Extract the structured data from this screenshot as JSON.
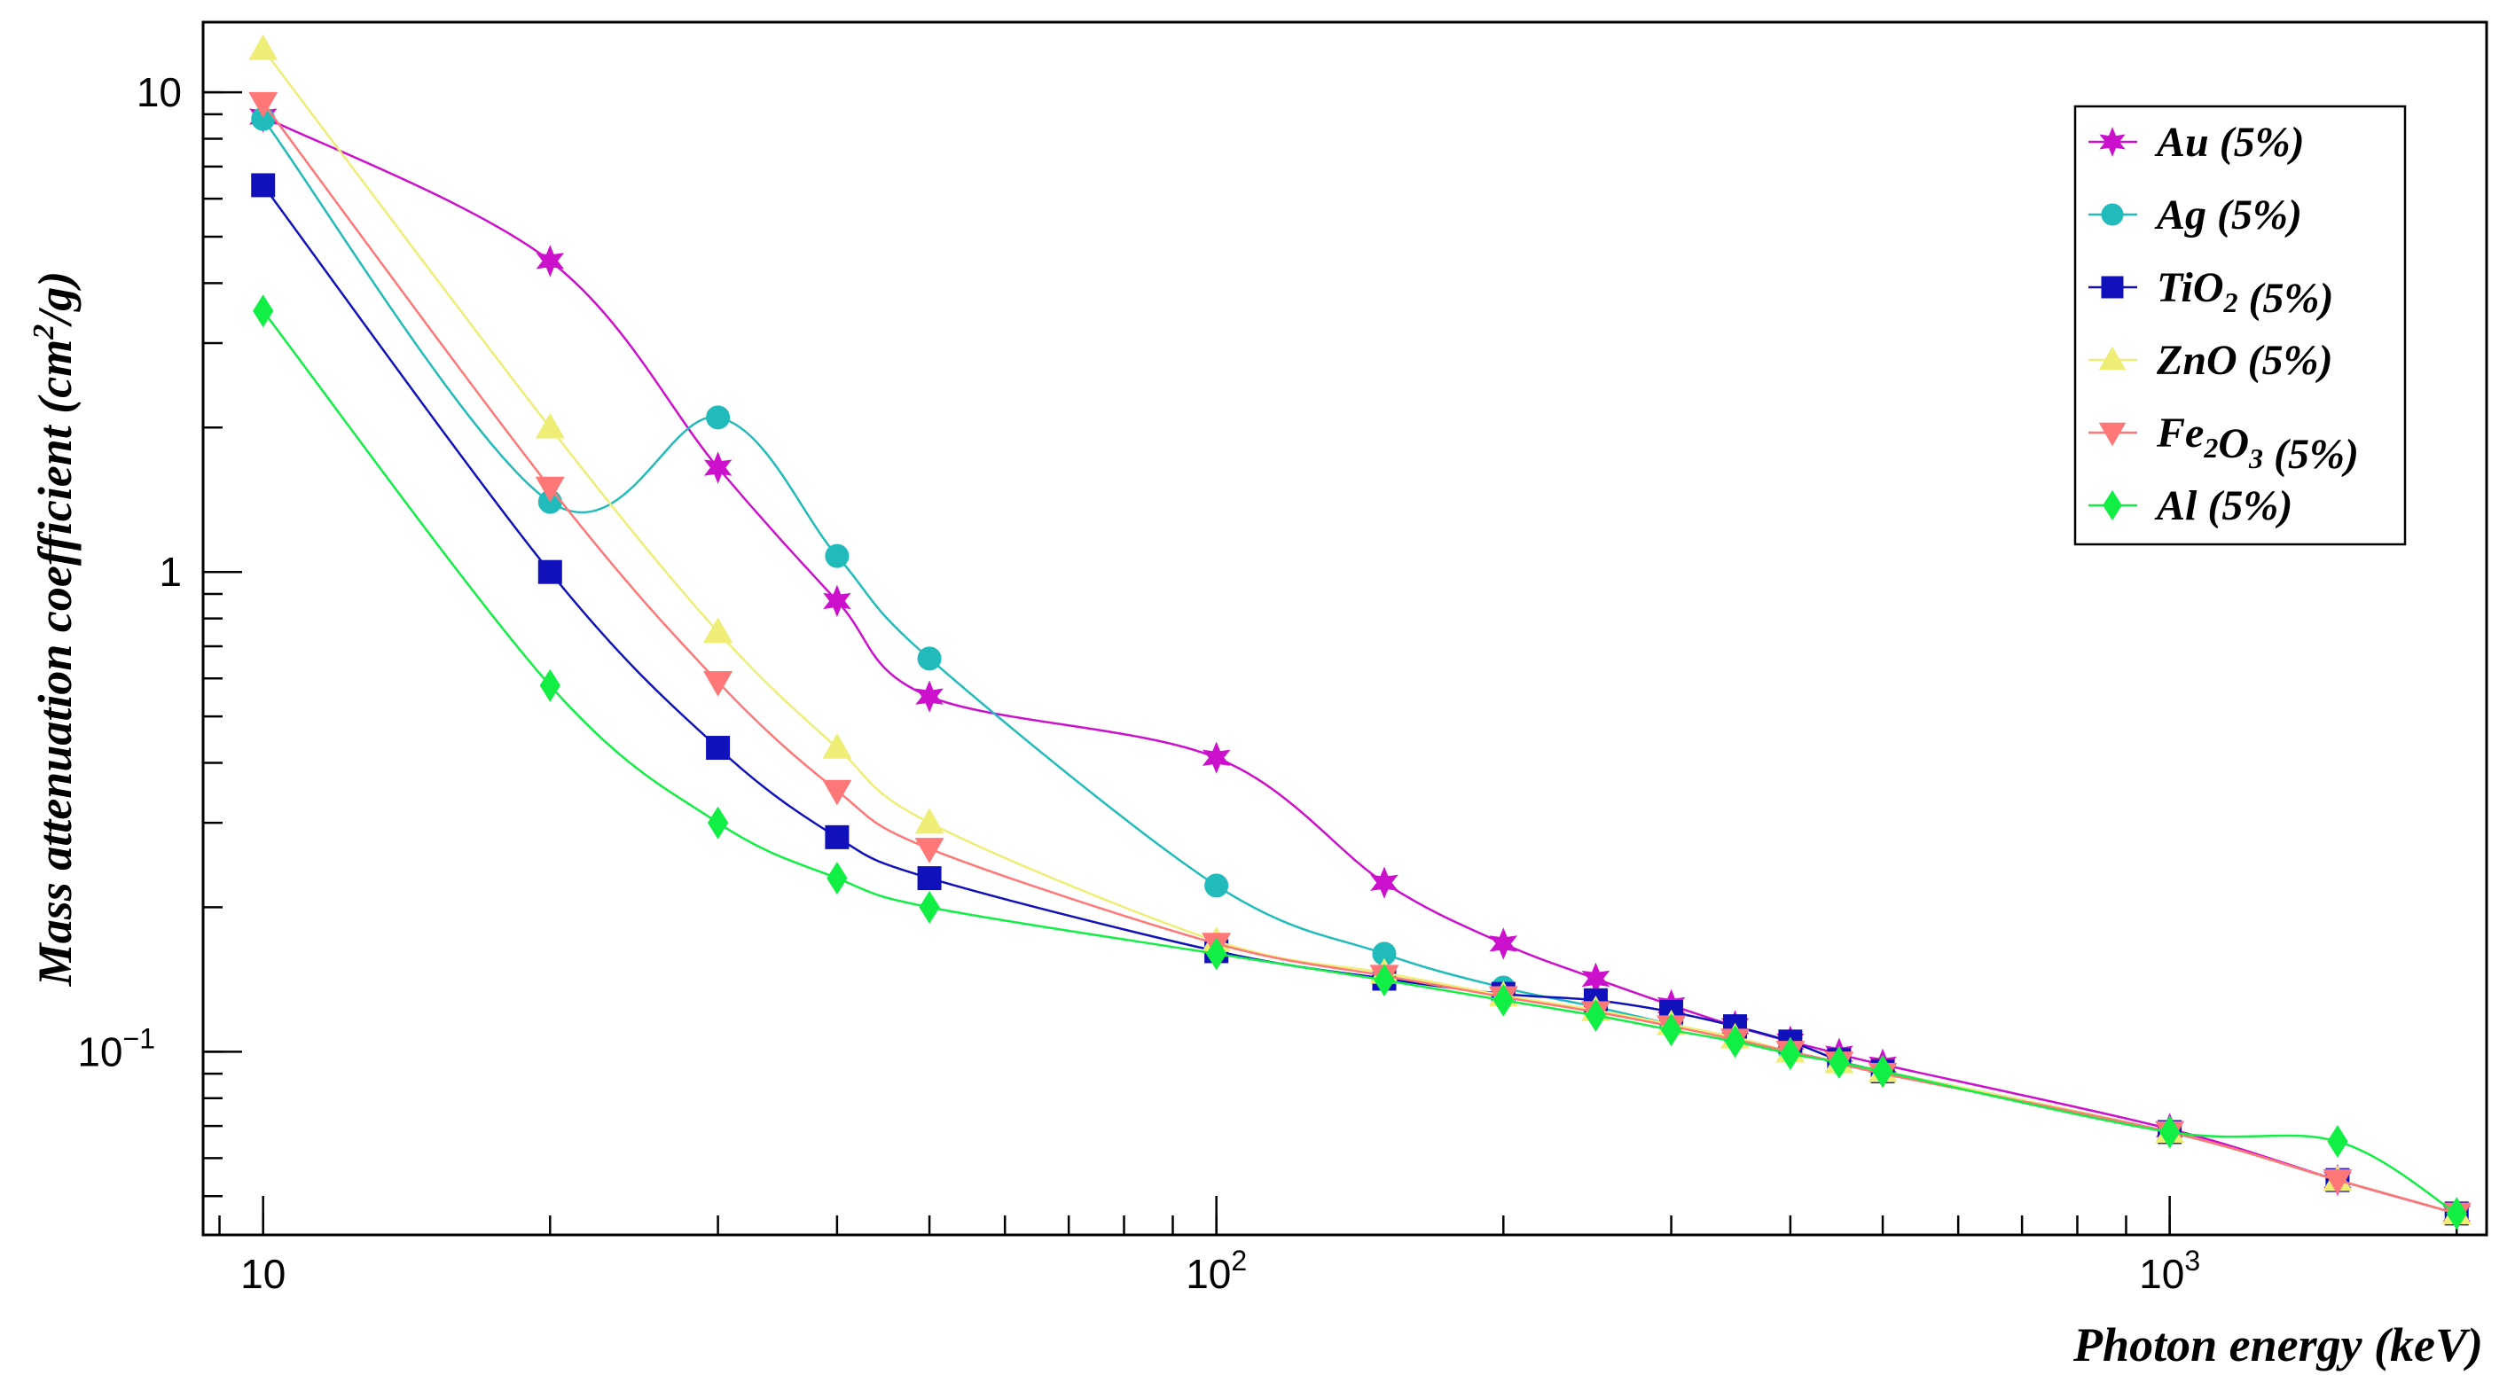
{
  "chart_data": {
    "type": "line",
    "title": "",
    "xlabel": "Photon energy (keV)",
    "ylabel_parts": {
      "main": "Mass attenuation coefficient (cm",
      "sup": "2",
      "tail": "/g)"
    },
    "xscale": "log",
    "yscale": "log",
    "xlim": [
      8.65,
      2150
    ],
    "ylim": [
      0.0415,
      14.0
    ],
    "grid": false,
    "legend_position": "top-right",
    "x_ticks": [
      {
        "value": 10,
        "base": "10",
        "exp": ""
      },
      {
        "value": 100,
        "base": "10",
        "exp": "2"
      },
      {
        "value": 1000,
        "base": "10",
        "exp": "3"
      }
    ],
    "y_ticks": [
      {
        "value": 10,
        "base": "10",
        "exp": ""
      },
      {
        "value": 1,
        "base": "1",
        "exp": ""
      },
      {
        "value": 0.1,
        "base": "10",
        "exp": "−1"
      }
    ],
    "x": [
      10,
      20,
      30,
      40,
      50,
      100,
      150,
      200,
      250,
      300,
      350,
      400,
      450,
      500,
      1000,
      1500,
      2000
    ],
    "series": [
      {
        "name_parts": [
          {
            "t": "Au (5%)",
            "sub": ""
          }
        ],
        "color": "#cc11cc",
        "marker": "star",
        "values": [
          8.9,
          4.45,
          1.65,
          0.87,
          0.55,
          0.41,
          0.225,
          0.168,
          0.142,
          0.125,
          0.113,
          0.105,
          0.099,
          0.094,
          0.069,
          0.054,
          0.046
        ]
      },
      {
        "name_parts": [
          {
            "t": "Ag (5%)",
            "sub": ""
          }
        ],
        "color": "#22bbbb",
        "marker": "circle",
        "values": [
          8.8,
          1.4,
          2.1,
          1.08,
          0.66,
          0.222,
          0.16,
          0.136,
          0.124,
          0.114,
          0.107,
          0.1,
          0.095,
          0.091,
          0.068,
          0.054,
          0.046
        ]
      },
      {
        "name_parts": [
          {
            "t": "TiO",
            "sub": "2"
          },
          {
            "t": " (5%)",
            "sub": ""
          }
        ],
        "color": "#1111bb",
        "marker": "square",
        "values": [
          6.4,
          1.0,
          0.43,
          0.28,
          0.23,
          0.162,
          0.142,
          0.132,
          0.128,
          0.121,
          0.113,
          0.105,
          0.096,
          0.091,
          0.068,
          0.054,
          0.046
        ]
      },
      {
        "name_parts": [
          {
            "t": "ZnO (5%)",
            "sub": ""
          }
        ],
        "color": "#eeee77",
        "marker": "triangle-up",
        "values": [
          12.3,
          2.0,
          0.75,
          0.43,
          0.3,
          0.17,
          0.146,
          0.131,
          0.122,
          0.114,
          0.107,
          0.1,
          0.095,
          0.091,
          0.068,
          0.054,
          0.046
        ]
      },
      {
        "name_parts": [
          {
            "t": "Fe",
            "sub": "2"
          },
          {
            "t": "O",
            "sub": "3"
          },
          {
            "t": " (5%)",
            "sub": ""
          }
        ],
        "color": "#ff7777",
        "marker": "triangle-down",
        "values": [
          9.5,
          1.5,
          0.59,
          0.35,
          0.265,
          0.168,
          0.144,
          0.13,
          0.121,
          0.113,
          0.106,
          0.1,
          0.095,
          0.09,
          0.068,
          0.054,
          0.046
        ]
      },
      {
        "name_parts": [
          {
            "t": "Al (5%)",
            "sub": ""
          }
        ],
        "color": "#11ee44",
        "marker": "diamond",
        "values": [
          3.5,
          0.58,
          0.3,
          0.23,
          0.2,
          0.16,
          0.141,
          0.128,
          0.119,
          0.111,
          0.105,
          0.099,
          0.095,
          0.091,
          0.068,
          0.065,
          0.046
        ]
      }
    ]
  }
}
